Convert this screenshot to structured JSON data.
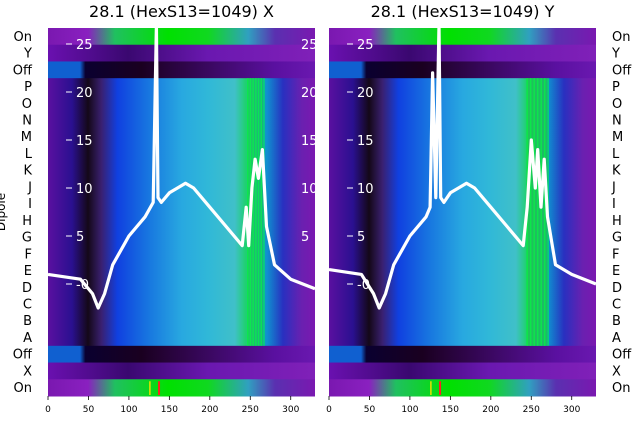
{
  "figure": {
    "ylabel": "Dipole",
    "panels": [
      {
        "title": "28.1 (HexS13=1049) X"
      },
      {
        "title": "28.1 (HexS13=1049) Y"
      }
    ],
    "colors": {
      "purple": "#7a10a8",
      "dark": "#1a0028",
      "blue": "#1030e0",
      "cyan": "#30a8e0",
      "teal": "#40c8b0",
      "green": "#00e000",
      "trace": "#ffffff"
    }
  },
  "chart_data": [
    {
      "type": "heatmap",
      "title": "28.1 (HexS13=1049) X",
      "ylabel": "Dipole",
      "categories": [
        "On",
        "Y",
        "Off",
        "P",
        "O",
        "N",
        "M",
        "L",
        "K",
        "J",
        "I",
        "H",
        "G",
        "F",
        "E",
        "D",
        "C",
        "B",
        "A",
        "Off",
        "X",
        "On"
      ],
      "x_ticks": [
        0,
        50,
        100,
        150,
        200,
        250,
        300
      ],
      "xlim": [
        0,
        330
      ],
      "overlay_ticks": [
        0,
        5,
        10,
        15,
        20,
        25
      ],
      "overlay_tick_labels": [
        "-0",
        "5",
        "10",
        "15",
        "20",
        "25"
      ],
      "overlay_ylim": [
        -5,
        27
      ],
      "series": [
        {
          "x": [
            0,
            40,
            55,
            62,
            70,
            80,
            100,
            120,
            130,
            134,
            136,
            140,
            150,
            160,
            170,
            180,
            200,
            220,
            240,
            245,
            248,
            252,
            256,
            260,
            265,
            270,
            280,
            300,
            330
          ],
          "y": [
            1.0,
            0.5,
            -1,
            -2.5,
            -1,
            2,
            5,
            7,
            8.5,
            27,
            9,
            8.5,
            9.5,
            10,
            10.5,
            10,
            8,
            6,
            4,
            8,
            4,
            10,
            13,
            11,
            14,
            6,
            2,
            0.5,
            -0.5
          ]
        }
      ]
    },
    {
      "type": "heatmap",
      "title": "28.1 (HexS13=1049) Y",
      "ylabel": "Dipole",
      "categories": [
        "On",
        "Y",
        "Off",
        "P",
        "O",
        "N",
        "M",
        "L",
        "K",
        "J",
        "I",
        "H",
        "G",
        "F",
        "E",
        "D",
        "C",
        "B",
        "A",
        "Off",
        "X",
        "On"
      ],
      "x_ticks": [
        0,
        50,
        100,
        150,
        200,
        250,
        300
      ],
      "xlim": [
        0,
        330
      ],
      "overlay_ticks": [
        0,
        5,
        10,
        15,
        20,
        25
      ],
      "overlay_tick_labels": [
        "-0",
        "5",
        "10",
        "15",
        "20",
        "25"
      ],
      "overlay_ylim": [
        -5,
        27
      ],
      "series": [
        {
          "x": [
            0,
            40,
            55,
            62,
            70,
            80,
            100,
            120,
            125,
            128,
            132,
            136,
            138,
            142,
            150,
            160,
            170,
            180,
            200,
            220,
            240,
            245,
            250,
            255,
            258,
            262,
            266,
            270,
            280,
            300,
            330
          ],
          "y": [
            1.5,
            1.0,
            -1,
            -2.5,
            -1,
            2,
            5,
            7,
            8,
            22,
            9,
            27,
            9,
            8.5,
            9.5,
            10,
            10.5,
            10,
            8,
            6,
            4,
            8,
            15,
            10,
            14,
            8,
            13,
            7,
            2,
            1.0,
            0.0
          ]
        }
      ]
    }
  ]
}
